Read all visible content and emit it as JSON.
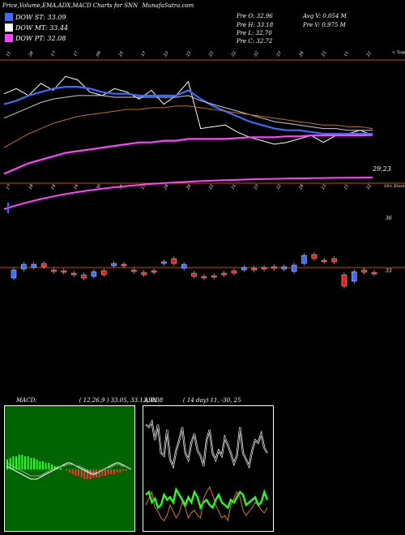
{
  "header": {
    "title": "Price,Volume,EMA,ADX,MACD Charts for SNN",
    "site": "MunafaSutra.com"
  },
  "legend": [
    {
      "label": "DOW ST: 33.09",
      "color": "#3b6cff"
    },
    {
      "label": "DOW MT: 33.44",
      "color": "#ffffff"
    },
    {
      "label": "DOW PT: 32.08",
      "color": "#ff44ff"
    }
  ],
  "stats": {
    "open": "Pre   O: 32.96",
    "high": "Pre   H: 33.18",
    "low": "Pre   L: 32.70",
    "close": "Pre   C: 32.72",
    "avg_volume": "Avg V: 0.054   M",
    "pre_volume": "Pre   V: 0.975  M"
  },
  "chart_data": [
    {
      "type": "line",
      "name": "price-ema",
      "x_tick_labels_top": [
        "11",
        "28",
        "17",
        "17",
        "09",
        "25",
        "17",
        "23",
        "23",
        "23",
        "22",
        "22",
        "23",
        "24",
        "23",
        "11",
        "22"
      ],
      "x_tick_labels_bottom": [
        "17",
        "18",
        "14",
        "14",
        "30",
        "31",
        "17",
        "24",
        "26",
        "22",
        "21",
        "23",
        "22",
        "24",
        "23",
        "11",
        "22"
      ],
      "price_label": "29.23",
      "right_top_label": "< Topp",
      "right_mid_label": "18< Enum",
      "series": [
        {
          "color": "#ffffff",
          "values": [
            31.6,
            31.9,
            31.5,
            32.2,
            31.8,
            32.6,
            32.4,
            31.7,
            31.5,
            31.9,
            31.7,
            31.3,
            31.8,
            31.0,
            31.5,
            32.3,
            29.6,
            29.7,
            29.8,
            29.4,
            29.1,
            28.9,
            28.7,
            28.8,
            29.0,
            29.2,
            28.8,
            29.2,
            29.3,
            29.5,
            29.2
          ]
        },
        {
          "color": "#3b6cff",
          "values": [
            31.0,
            31.2,
            31.5,
            31.7,
            31.9,
            32.0,
            32.0,
            31.9,
            31.7,
            31.6,
            31.6,
            31.5,
            31.5,
            31.5,
            31.5,
            31.8,
            31.3,
            30.9,
            30.6,
            30.3,
            30.0,
            29.8,
            29.6,
            29.5,
            29.5,
            29.4,
            29.3,
            29.3,
            29.3,
            29.3,
            29.3
          ]
        },
        {
          "color": "#cccccc",
          "values": [
            30.2,
            30.5,
            30.8,
            31.1,
            31.3,
            31.4,
            31.5,
            31.5,
            31.5,
            31.4,
            31.4,
            31.4,
            31.4,
            31.4,
            31.4,
            31.5,
            31.2,
            31.0,
            30.8,
            30.6,
            30.4,
            30.2,
            30.0,
            29.9,
            29.8,
            29.7,
            29.6,
            29.6,
            29.5,
            29.5,
            29.5
          ]
        },
        {
          "color": "#c07020",
          "values": [
            28.5,
            28.9,
            29.3,
            29.6,
            29.9,
            30.1,
            30.3,
            30.4,
            30.5,
            30.6,
            30.7,
            30.7,
            30.8,
            30.8,
            30.9,
            30.9,
            30.8,
            30.7,
            30.6,
            30.5,
            30.4,
            30.3,
            30.2,
            30.1,
            30.0,
            29.9,
            29.8,
            29.8,
            29.7,
            29.7,
            29.6
          ]
        },
        {
          "color": "#ff44ff",
          "values": [
            27.0,
            27.3,
            27.6,
            27.8,
            28.0,
            28.2,
            28.3,
            28.4,
            28.5,
            28.6,
            28.7,
            28.8,
            28.8,
            28.9,
            28.9,
            29.0,
            29.0,
            29.0,
            29.0,
            29.05,
            29.1,
            29.1,
            29.1,
            29.15,
            29.15,
            29.2,
            29.2,
            29.2,
            29.2,
            29.2,
            29.23
          ]
        }
      ],
      "ylim": [
        26.5,
        33.5
      ]
    },
    {
      "type": "bar",
      "name": "volume-candles",
      "price_label_36": "36",
      "price_label_33": "33",
      "candles": [
        {
          "o": 0.2,
          "c": -0.8,
          "up": true
        },
        {
          "o": 0.3,
          "c": 0.9,
          "up": true
        },
        {
          "o": 0.5,
          "c": 0.9,
          "up": true
        },
        {
          "o": 0.6,
          "c": 1.0,
          "up": false
        },
        {
          "o": 0.2,
          "c": 0.0,
          "up": false
        },
        {
          "o": 0.1,
          "c": -0.1,
          "up": false
        },
        {
          "o": -0.2,
          "c": -0.4,
          "up": false
        },
        {
          "o": -0.4,
          "c": -0.8,
          "up": false
        },
        {
          "o": 0.0,
          "c": -0.6,
          "up": true
        },
        {
          "o": 0.1,
          "c": -0.4,
          "up": false
        },
        {
          "o": 0.7,
          "c": 1.0,
          "up": true
        },
        {
          "o": 0.7,
          "c": 0.9,
          "up": false
        },
        {
          "o": 0.2,
          "c": 0.0,
          "up": false
        },
        {
          "o": -0.1,
          "c": -0.4,
          "up": false
        },
        {
          "o": 0.0,
          "c": 0.1,
          "up": false
        },
        {
          "o": 1.0,
          "c": 1.2,
          "up": true
        },
        {
          "o": 1.6,
          "c": 1.0,
          "up": false
        },
        {
          "o": 0.4,
          "c": 0.9,
          "up": true
        },
        {
          "o": -0.2,
          "c": -0.6,
          "up": false
        },
        {
          "o": -0.6,
          "c": -0.7,
          "up": false
        },
        {
          "o": -0.5,
          "c": -0.7,
          "up": false
        },
        {
          "o": -0.2,
          "c": -0.3,
          "up": false
        },
        {
          "o": 0.1,
          "c": -0.2,
          "up": false
        },
        {
          "o": 0.2,
          "c": 0.5,
          "up": true
        },
        {
          "o": 0.4,
          "c": 0.2,
          "up": false
        },
        {
          "o": 0.5,
          "c": 0.4,
          "up": false
        },
        {
          "o": 0.6,
          "c": 0.5,
          "up": false
        },
        {
          "o": 0.3,
          "c": 0.6,
          "up": true
        },
        {
          "o": 0.8,
          "c": 0.0,
          "up": true
        },
        {
          "o": 1.0,
          "c": 2.0,
          "up": true
        },
        {
          "o": 1.6,
          "c": 2.1,
          "up": false
        },
        {
          "o": 1.3,
          "c": 1.4,
          "up": false
        },
        {
          "o": 1.6,
          "c": 1.2,
          "up": false
        },
        {
          "o": -1.8,
          "c": -0.4,
          "up": false
        },
        {
          "o": -1.2,
          "c": 0.0,
          "up": true
        },
        {
          "o": -0.1,
          "c": 0.2,
          "up": false
        },
        {
          "o": -0.1,
          "c": -0.3,
          "up": false
        }
      ]
    },
    {
      "type": "area",
      "name": "macd",
      "label": "MACD:",
      "params": "( 12,26,9 ) 33.05,  33.13,  0.08",
      "histogram": [
        6,
        7,
        8,
        8,
        9,
        9,
        8,
        8,
        7,
        7,
        6,
        5,
        5,
        4,
        4,
        3,
        2,
        2,
        1,
        0,
        -1,
        -2,
        -3,
        -4,
        -4,
        -5,
        -6,
        -6,
        -6,
        -5,
        -5,
        -5,
        -4,
        -4,
        -3,
        -3,
        -3,
        -2,
        -2,
        -1,
        -1,
        0
      ],
      "macd_line": [
        2,
        1,
        0,
        -1,
        -2,
        -3,
        -4,
        -5,
        -6,
        -6,
        -6,
        -5,
        -4,
        -3,
        -2,
        -1,
        0,
        1,
        2,
        3,
        4,
        4,
        3,
        2,
        1,
        0,
        -1,
        -2,
        -3,
        -3,
        -2,
        -1,
        0,
        1,
        2,
        3,
        4,
        4,
        3,
        2,
        1,
        0
      ],
      "signal_line": [
        4,
        3,
        2,
        1,
        0,
        -1,
        -2,
        -3,
        -4,
        -4,
        -4,
        -4,
        -3,
        -2,
        -1,
        0,
        1,
        1,
        2,
        2,
        3,
        3,
        3,
        2,
        2,
        1,
        0,
        -1,
        -2,
        -2,
        -2,
        -1,
        0,
        1,
        1,
        2,
        3,
        3,
        2,
        2,
        1,
        0
      ]
    },
    {
      "type": "line",
      "name": "adx",
      "label": "ADX",
      "params": "( 14  day) 11,  -30,  25",
      "adx": [
        82,
        80,
        84,
        70,
        82,
        60,
        58,
        78,
        55,
        50,
        62,
        70,
        80,
        60,
        55,
        68,
        75,
        62,
        58,
        50,
        70,
        78,
        60,
        55,
        62,
        58,
        72,
        66,
        60,
        52,
        58,
        80,
        60,
        55,
        50,
        62,
        70,
        68,
        75,
        64,
        60
      ],
      "green": [
        28,
        30,
        22,
        25,
        18,
        20,
        28,
        24,
        26,
        22,
        32,
        28,
        24,
        20,
        26,
        22,
        30,
        26,
        18,
        22,
        24,
        20,
        18,
        24,
        28,
        22,
        20,
        18,
        24,
        22,
        26,
        30,
        28,
        20,
        22,
        24,
        26,
        20,
        22,
        30,
        24
      ],
      "orange": [
        20,
        25,
        30,
        18,
        15,
        10,
        8,
        12,
        20,
        15,
        10,
        14,
        22,
        18,
        10,
        14,
        16,
        12,
        10,
        25,
        30,
        34,
        28,
        20,
        15,
        10,
        12,
        8,
        20,
        25,
        30,
        26,
        16,
        12,
        15,
        18,
        22,
        20,
        16,
        14,
        18
      ]
    }
  ]
}
